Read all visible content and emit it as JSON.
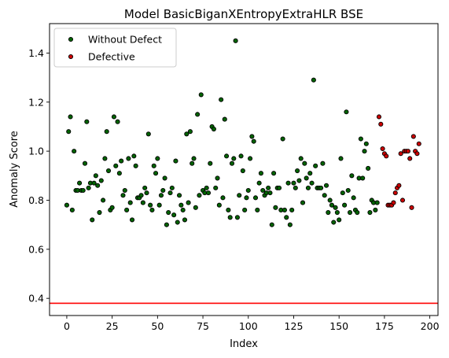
{
  "chart_data": {
    "type": "scatter",
    "title": "Model BasicBiganXEntropyExtraHLR BSE",
    "xlabel": "Index",
    "ylabel": "Anomaly Score",
    "xlim": [
      -9.5,
      204.5
    ],
    "ylim": [
      0.33,
      1.52
    ],
    "xticks": [
      0,
      25,
      50,
      75,
      100,
      125,
      150,
      175,
      200
    ],
    "yticks": [
      0.4,
      0.6,
      0.8,
      1.0,
      1.2,
      1.4
    ],
    "ytick_labels": [
      "0.4",
      "0.6",
      "0.8",
      "1.0",
      "1.2",
      "1.4"
    ],
    "legend": {
      "position": "top-left"
    },
    "threshold": {
      "y": 0.38,
      "color": "#ff0000"
    },
    "series": [
      {
        "name": "Without Defect",
        "color": "#006400",
        "x": [
          0,
          1,
          2,
          3,
          4,
          5,
          6,
          7,
          8,
          9,
          10,
          11,
          12,
          13,
          14,
          15,
          16,
          17,
          18,
          19,
          20,
          21,
          22,
          23,
          24,
          25,
          26,
          27,
          28,
          29,
          30,
          31,
          32,
          33,
          34,
          35,
          36,
          37,
          38,
          39,
          40,
          41,
          42,
          43,
          44,
          45,
          46,
          47,
          48,
          49,
          50,
          51,
          52,
          53,
          54,
          55,
          56,
          57,
          58,
          59,
          60,
          61,
          62,
          63,
          64,
          65,
          66,
          67,
          68,
          69,
          70,
          71,
          72,
          73,
          74,
          75,
          76,
          77,
          78,
          79,
          80,
          81,
          82,
          83,
          84,
          85,
          86,
          87,
          88,
          89,
          90,
          91,
          92,
          93,
          94,
          95,
          96,
          97,
          98,
          99,
          100,
          101,
          102,
          103,
          104,
          105,
          106,
          107,
          108,
          109,
          110,
          111,
          112,
          113,
          114,
          115,
          116,
          117,
          118,
          119,
          120,
          121,
          122,
          123,
          124,
          125,
          126,
          127,
          128,
          129,
          130,
          131,
          132,
          133,
          134,
          135,
          136,
          137,
          138,
          139,
          140,
          141,
          142,
          143,
          144,
          145,
          146,
          147,
          148,
          149,
          150,
          151,
          152,
          153,
          154,
          155,
          156,
          157,
          158,
          159,
          160,
          161,
          162,
          163,
          164,
          165,
          166,
          167,
          168,
          169,
          170,
          171
        ],
        "y": [
          0.78,
          1.08,
          1.14,
          0.76,
          1.0,
          0.84,
          0.84,
          0.87,
          0.84,
          0.84,
          0.95,
          1.12,
          0.85,
          0.87,
          0.72,
          0.87,
          0.9,
          0.86,
          0.75,
          0.88,
          0.8,
          0.97,
          1.08,
          0.92,
          0.76,
          0.77,
          1.14,
          0.94,
          1.12,
          0.91,
          0.96,
          0.82,
          0.84,
          0.76,
          0.97,
          0.79,
          0.72,
          0.98,
          0.94,
          0.81,
          0.81,
          0.82,
          0.79,
          0.85,
          0.83,
          1.07,
          0.78,
          0.76,
          0.94,
          0.91,
          0.97,
          0.78,
          0.82,
          0.84,
          0.89,
          0.7,
          0.75,
          0.83,
          0.85,
          0.74,
          0.96,
          0.71,
          0.82,
          0.78,
          0.76,
          0.72,
          1.07,
          0.79,
          1.08,
          0.95,
          0.97,
          0.77,
          1.15,
          0.82,
          1.23,
          0.84,
          0.83,
          0.85,
          0.83,
          0.95,
          1.1,
          1.09,
          0.85,
          0.89,
          0.78,
          1.21,
          0.81,
          1.13,
          0.98,
          0.76,
          0.73,
          0.95,
          0.97,
          1.45,
          0.73,
          0.82,
          0.98,
          0.92,
          0.76,
          0.81,
          0.84,
          0.97,
          1.06,
          1.04,
          0.81,
          0.76,
          0.87,
          0.91,
          0.84,
          0.82,
          0.83,
          0.85,
          0.83,
          0.7,
          0.91,
          0.77,
          0.85,
          0.85,
          0.76,
          1.05,
          0.76,
          0.73,
          0.87,
          0.7,
          0.76,
          0.87,
          0.85,
          0.92,
          0.88,
          0.97,
          0.79,
          0.95,
          0.89,
          0.85,
          0.91,
          0.87,
          1.29,
          0.94,
          0.85,
          0.85,
          0.85,
          0.95,
          0.82,
          0.86,
          0.75,
          0.8,
          0.78,
          0.71,
          0.77,
          0.75,
          0.72,
          0.97,
          0.83,
          0.78,
          1.16,
          0.84,
          0.75,
          0.9,
          0.81,
          0.76,
          0.75,
          0.89,
          1.05,
          0.89,
          1.0,
          1.03,
          0.93,
          0.75,
          0.8,
          0.79,
          0.76,
          0.79
        ]
      },
      {
        "name": "Defective",
        "color": "#cc0000",
        "x": [
          172,
          173,
          174,
          175,
          176,
          177,
          178,
          179,
          180,
          181,
          182,
          183,
          184,
          185,
          186,
          187,
          188,
          189,
          190,
          191,
          192,
          193,
          194
        ],
        "y": [
          1.14,
          1.11,
          1.01,
          0.99,
          0.98,
          0.78,
          0.78,
          0.78,
          0.79,
          0.83,
          0.85,
          0.86,
          0.99,
          0.8,
          1.0,
          1.0,
          1.0,
          0.97,
          0.77,
          1.06,
          1.0,
          0.99,
          1.03
        ]
      }
    ]
  }
}
